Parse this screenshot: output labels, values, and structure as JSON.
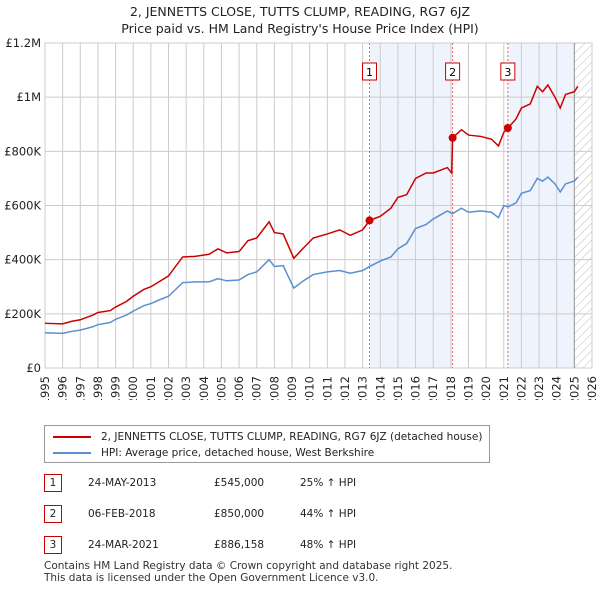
{
  "title": [
    "2, JENNETTS CLOSE, TUTTS CLUMP, READING, RG7 6JZ",
    "Price paid vs. HM Land Registry's House Price Index (HPI)"
  ],
  "chart_data": {
    "type": "line",
    "xlim": [
      1995,
      2026
    ],
    "ylim": [
      0,
      1200000
    ],
    "yticks": [
      {
        "v": 0,
        "label": "£0"
      },
      {
        "v": 200000,
        "label": "£200K"
      },
      {
        "v": 400000,
        "label": "£400K"
      },
      {
        "v": 600000,
        "label": "£600K"
      },
      {
        "v": 800000,
        "label": "£800K"
      },
      {
        "v": 1000000,
        "label": "£1M"
      },
      {
        "v": 1200000,
        "label": "£1.2M"
      }
    ],
    "xticks": [
      1995,
      1996,
      1997,
      1998,
      1999,
      2000,
      2001,
      2002,
      2003,
      2004,
      2005,
      2006,
      2007,
      2008,
      2009,
      2010,
      2011,
      2012,
      2013,
      2014,
      2015,
      2016,
      2017,
      2018,
      2019,
      2020,
      2021,
      2022,
      2023,
      2024,
      2025,
      2026
    ],
    "series": [
      {
        "name": "2, JENNETTS CLOSE, TUTTS CLUMP, READING, RG7 6JZ (detached house)",
        "color": "#cc0000",
        "points": [
          [
            1995,
            165000
          ],
          [
            1996,
            163000
          ],
          [
            1996.5,
            172000
          ],
          [
            1997,
            178000
          ],
          [
            1997.7,
            195000
          ],
          [
            1998,
            205000
          ],
          [
            1998.7,
            212000
          ],
          [
            1999,
            225000
          ],
          [
            1999.6,
            245000
          ],
          [
            2000,
            265000
          ],
          [
            2000.6,
            290000
          ],
          [
            2001,
            300000
          ],
          [
            2001.5,
            320000
          ],
          [
            2002,
            340000
          ],
          [
            2002.8,
            410000
          ],
          [
            2003.5,
            412000
          ],
          [
            2004.3,
            420000
          ],
          [
            2004.8,
            440000
          ],
          [
            2005.3,
            425000
          ],
          [
            2006,
            430000
          ],
          [
            2006.5,
            470000
          ],
          [
            2007,
            480000
          ],
          [
            2007.7,
            540000
          ],
          [
            2008,
            500000
          ],
          [
            2008.5,
            495000
          ],
          [
            2009.1,
            405000
          ],
          [
            2009.6,
            440000
          ],
          [
            2010.2,
            480000
          ],
          [
            2011,
            495000
          ],
          [
            2011.7,
            510000
          ],
          [
            2012.3,
            490000
          ],
          [
            2013,
            510000
          ],
          [
            2013.4,
            545000
          ],
          [
            2014,
            560000
          ],
          [
            2014.6,
            590000
          ],
          [
            2015,
            630000
          ],
          [
            2015.5,
            640000
          ],
          [
            2016,
            700000
          ],
          [
            2016.6,
            720000
          ],
          [
            2017,
            720000
          ],
          [
            2017.8,
            740000
          ],
          [
            2018.05,
            720000
          ],
          [
            2018.1,
            850000
          ],
          [
            2018.6,
            880000
          ],
          [
            2019,
            860000
          ],
          [
            2019.7,
            855000
          ],
          [
            2020.3,
            845000
          ],
          [
            2020.7,
            820000
          ],
          [
            2021,
            870000
          ],
          [
            2021.24,
            886158
          ],
          [
            2021.7,
            920000
          ],
          [
            2022,
            960000
          ],
          [
            2022.5,
            975000
          ],
          [
            2022.9,
            1040000
          ],
          [
            2023.2,
            1020000
          ],
          [
            2023.5,
            1045000
          ],
          [
            2023.9,
            1000000
          ],
          [
            2024.2,
            960000
          ],
          [
            2024.5,
            1010000
          ],
          [
            2025,
            1020000
          ],
          [
            2025.2,
            1040000
          ]
        ]
      },
      {
        "name": "HPI: Average price, detached house, West Berkshire",
        "color": "#5b8fd0",
        "points": [
          [
            1995,
            130000
          ],
          [
            1996,
            128000
          ],
          [
            1996.5,
            135000
          ],
          [
            1997,
            140000
          ],
          [
            1997.7,
            152000
          ],
          [
            1998,
            160000
          ],
          [
            1998.7,
            168000
          ],
          [
            1999,
            180000
          ],
          [
            1999.6,
            195000
          ],
          [
            2000,
            210000
          ],
          [
            2000.6,
            230000
          ],
          [
            2001,
            238000
          ],
          [
            2001.5,
            252000
          ],
          [
            2002,
            265000
          ],
          [
            2002.8,
            315000
          ],
          [
            2003.5,
            318000
          ],
          [
            2004.3,
            318000
          ],
          [
            2004.8,
            330000
          ],
          [
            2005.3,
            322000
          ],
          [
            2006,
            325000
          ],
          [
            2006.5,
            345000
          ],
          [
            2007,
            355000
          ],
          [
            2007.7,
            400000
          ],
          [
            2008,
            375000
          ],
          [
            2008.5,
            378000
          ],
          [
            2009.1,
            295000
          ],
          [
            2009.6,
            320000
          ],
          [
            2010.2,
            345000
          ],
          [
            2011,
            355000
          ],
          [
            2011.7,
            360000
          ],
          [
            2012.3,
            350000
          ],
          [
            2013,
            360000
          ],
          [
            2013.4,
            375000
          ],
          [
            2014,
            395000
          ],
          [
            2014.6,
            410000
          ],
          [
            2015,
            440000
          ],
          [
            2015.5,
            460000
          ],
          [
            2016,
            515000
          ],
          [
            2016.6,
            530000
          ],
          [
            2017,
            550000
          ],
          [
            2017.8,
            580000
          ],
          [
            2018.1,
            570000
          ],
          [
            2018.6,
            590000
          ],
          [
            2019,
            575000
          ],
          [
            2019.7,
            580000
          ],
          [
            2020.3,
            575000
          ],
          [
            2020.7,
            555000
          ],
          [
            2021,
            600000
          ],
          [
            2021.24,
            595000
          ],
          [
            2021.7,
            610000
          ],
          [
            2022,
            645000
          ],
          [
            2022.5,
            655000
          ],
          [
            2022.9,
            700000
          ],
          [
            2023.2,
            690000
          ],
          [
            2023.5,
            705000
          ],
          [
            2023.9,
            680000
          ],
          [
            2024.2,
            650000
          ],
          [
            2024.5,
            680000
          ],
          [
            2025,
            690000
          ],
          [
            2025.2,
            705000
          ]
        ]
      }
    ],
    "sales": [
      {
        "n": "1",
        "x": 2013.39,
        "y": 545000
      },
      {
        "n": "2",
        "x": 2018.1,
        "y": 850000
      },
      {
        "n": "3",
        "x": 2021.23,
        "y": 886158
      }
    ],
    "shaded": [
      [
        2013.39,
        2018.1
      ],
      [
        2021.23,
        2025.0
      ]
    ],
    "hatch_from": 2025.0
  },
  "legend": [
    "2, JENNETTS CLOSE, TUTTS CLUMP, READING, RG7 6JZ (detached house)",
    "HPI: Average price, detached house, West Berkshire"
  ],
  "table": [
    {
      "n": "1",
      "date": "24-MAY-2013",
      "price": "£545,000",
      "hpi": "25% ↑ HPI"
    },
    {
      "n": "2",
      "date": "06-FEB-2018",
      "price": "£850,000",
      "hpi": "44% ↑ HPI"
    },
    {
      "n": "3",
      "date": "24-MAR-2021",
      "price": "£886,158",
      "hpi": "48% ↑ HPI"
    }
  ],
  "footer": [
    "Contains HM Land Registry data © Crown copyright and database right 2025.",
    "This data is licensed under the Open Government Licence v3.0."
  ]
}
